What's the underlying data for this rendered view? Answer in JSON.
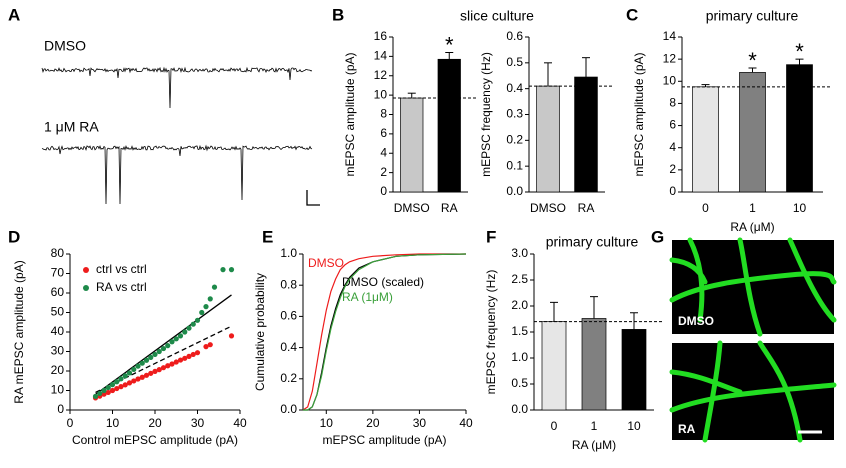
{
  "panel_labels": [
    "A",
    "B",
    "C",
    "D",
    "E",
    "F",
    "G"
  ],
  "panel_a": {
    "traces": [
      {
        "label": "DMSO"
      },
      {
        "label": "1 μM RA"
      }
    ]
  },
  "panel_g": {
    "images": [
      {
        "label": "DMSO"
      },
      {
        "label": "RA"
      }
    ]
  },
  "chart_data": [
    {
      "type": "bar",
      "title": "slice culture",
      "ylabel": "mEPSC amplitude (pA)",
      "categories": [
        "DMSO",
        "RA"
      ],
      "values": [
        9.7,
        13.7
      ],
      "errors": [
        0.5,
        0.7
      ],
      "colors": [
        "#c8c8c8",
        "#000000"
      ],
      "significance": [
        null,
        "*"
      ],
      "reference_line": 9.7,
      "ylim": [
        0,
        16
      ],
      "yticks": [
        0,
        2,
        4,
        6,
        8,
        10,
        12,
        14,
        16
      ]
    },
    {
      "type": "bar",
      "ylabel": "mEPSC frequency (Hz)",
      "categories": [
        "DMSO",
        "RA"
      ],
      "values": [
        0.41,
        0.445
      ],
      "errors": [
        0.09,
        0.075
      ],
      "colors": [
        "#c8c8c8",
        "#000000"
      ],
      "reference_line": 0.41,
      "ylim": [
        0,
        0.6
      ],
      "yticks": [
        {
          "value": 0,
          "label": "0.0"
        },
        0.1,
        0.2,
        0.3,
        0.4,
        0.5,
        0.6
      ]
    },
    {
      "type": "bar",
      "title": "primary culture",
      "ylabel": "mEPSC amplitude (pA)",
      "xlabel": "RA (μM)",
      "categories": [
        "0",
        "1",
        "10"
      ],
      "values": [
        9.5,
        10.8,
        11.5
      ],
      "errors": [
        0.2,
        0.4,
        0.5
      ],
      "colors": [
        "#e6e6e6",
        "#808080",
        "#000000"
      ],
      "significance": [
        null,
        "*",
        "*"
      ],
      "reference_line": 9.5,
      "ylim": [
        0,
        14
      ],
      "yticks": [
        0,
        2,
        4,
        6,
        8,
        10,
        12,
        14
      ]
    },
    {
      "type": "scatter",
      "xlabel": "Control mEPSC amplitude (pA)",
      "ylabel": "RA mEPSC amplitude (pA)",
      "legend": "upper left",
      "series": [
        {
          "name": "ctrl vs ctrl",
          "color": "#ee1c1c",
          "x": [
            6,
            7,
            8,
            9,
            10,
            11,
            12,
            13,
            14,
            15,
            16,
            17,
            18,
            19,
            20,
            21,
            22,
            23,
            24,
            25,
            26,
            27,
            28,
            29,
            30,
            32,
            33,
            38
          ],
          "values": [
            6.2,
            7.1,
            8.1,
            9,
            10,
            11,
            12,
            12.9,
            13.9,
            14.9,
            15.9,
            16.8,
            17.8,
            18.8,
            19.8,
            20.7,
            21.7,
            22.7,
            23.6,
            24.6,
            25.6,
            26.5,
            27.5,
            28.5,
            29.4,
            32.5,
            33.5,
            38
          ]
        },
        {
          "name": "RA vs ctrl",
          "color": "#1e8a4a",
          "x": [
            6,
            7,
            8,
            9,
            10,
            11,
            12,
            13,
            14,
            15,
            16,
            17,
            18,
            19,
            20,
            21,
            22,
            23,
            24,
            25,
            26,
            27,
            28,
            29,
            30,
            31,
            32,
            33,
            34,
            36,
            38
          ],
          "values": [
            7,
            8.5,
            10,
            11.5,
            13,
            14.5,
            16,
            17.5,
            19,
            20.8,
            22.5,
            24,
            25.5,
            27,
            28.5,
            30,
            31.5,
            33,
            35,
            36.5,
            38,
            40,
            42,
            44,
            46,
            50,
            53,
            57,
            63,
            72,
            72
          ]
        }
      ],
      "fit_lines": [
        {
          "x": [
            6,
            38
          ],
          "values": [
            8,
            59
          ],
          "dashed": false
        },
        {
          "x": [
            6,
            38
          ],
          "values": [
            9,
            43
          ],
          "dashed": true
        }
      ],
      "xlim": [
        0,
        40
      ],
      "xticks": [
        0,
        10,
        20,
        30,
        40
      ],
      "ylim": [
        0,
        80
      ],
      "yticks": [
        0,
        10,
        20,
        30,
        40,
        50,
        60,
        70,
        80
      ]
    },
    {
      "type": "line",
      "xlabel": "mEPSC amplitude (pA)",
      "ylabel": "Cumulative probability",
      "x": [
        5,
        6,
        7,
        8,
        9,
        10,
        11,
        12,
        13,
        14,
        15,
        17,
        20,
        25,
        30,
        40
      ],
      "series": [
        {
          "name": "DMSO",
          "color": "#ee1c1c",
          "values": [
            0,
            0.02,
            0.12,
            0.3,
            0.48,
            0.64,
            0.76,
            0.84,
            0.9,
            0.93,
            0.95,
            0.97,
            0.985,
            0.995,
            1,
            1
          ]
        },
        {
          "name": "DMSO (scaled)",
          "color": "#000000",
          "values": [
            0,
            0,
            0.02,
            0.1,
            0.24,
            0.4,
            0.54,
            0.65,
            0.74,
            0.8,
            0.85,
            0.91,
            0.95,
            0.985,
            0.995,
            1
          ]
        },
        {
          "name": "RA (1μM)",
          "color": "#3aa03a",
          "values": [
            0,
            0,
            0.02,
            0.1,
            0.22,
            0.38,
            0.52,
            0.63,
            0.72,
            0.79,
            0.84,
            0.9,
            0.95,
            0.985,
            0.995,
            1
          ]
        }
      ],
      "xlim": [
        5,
        40
      ],
      "xticks": [
        10,
        20,
        30,
        40
      ],
      "ylim": [
        0,
        1
      ],
      "yticks": [
        {
          "value": 0,
          "label": "0.0"
        },
        0.2,
        0.4,
        0.6,
        0.8,
        {
          "value": 1,
          "label": "1.0"
        }
      ]
    },
    {
      "type": "bar",
      "title": "primary culture",
      "ylabel": "mEPSC frequency (Hz)",
      "xlabel": "RA (μM)",
      "categories": [
        "0",
        "1",
        "10"
      ],
      "values": [
        1.7,
        1.76,
        1.55
      ],
      "errors": [
        0.37,
        0.42,
        0.32
      ],
      "colors": [
        "#e6e6e6",
        "#808080",
        "#000000"
      ],
      "reference_line": 1.7,
      "ylim": [
        0,
        3
      ],
      "yticks": [
        {
          "value": 0,
          "label": "0.0"
        },
        0.5,
        {
          "value": 1,
          "label": "1.0"
        },
        1.5,
        {
          "value": 2,
          "label": "2.0"
        },
        2.5,
        {
          "value": 3,
          "label": "3.0"
        }
      ]
    }
  ]
}
